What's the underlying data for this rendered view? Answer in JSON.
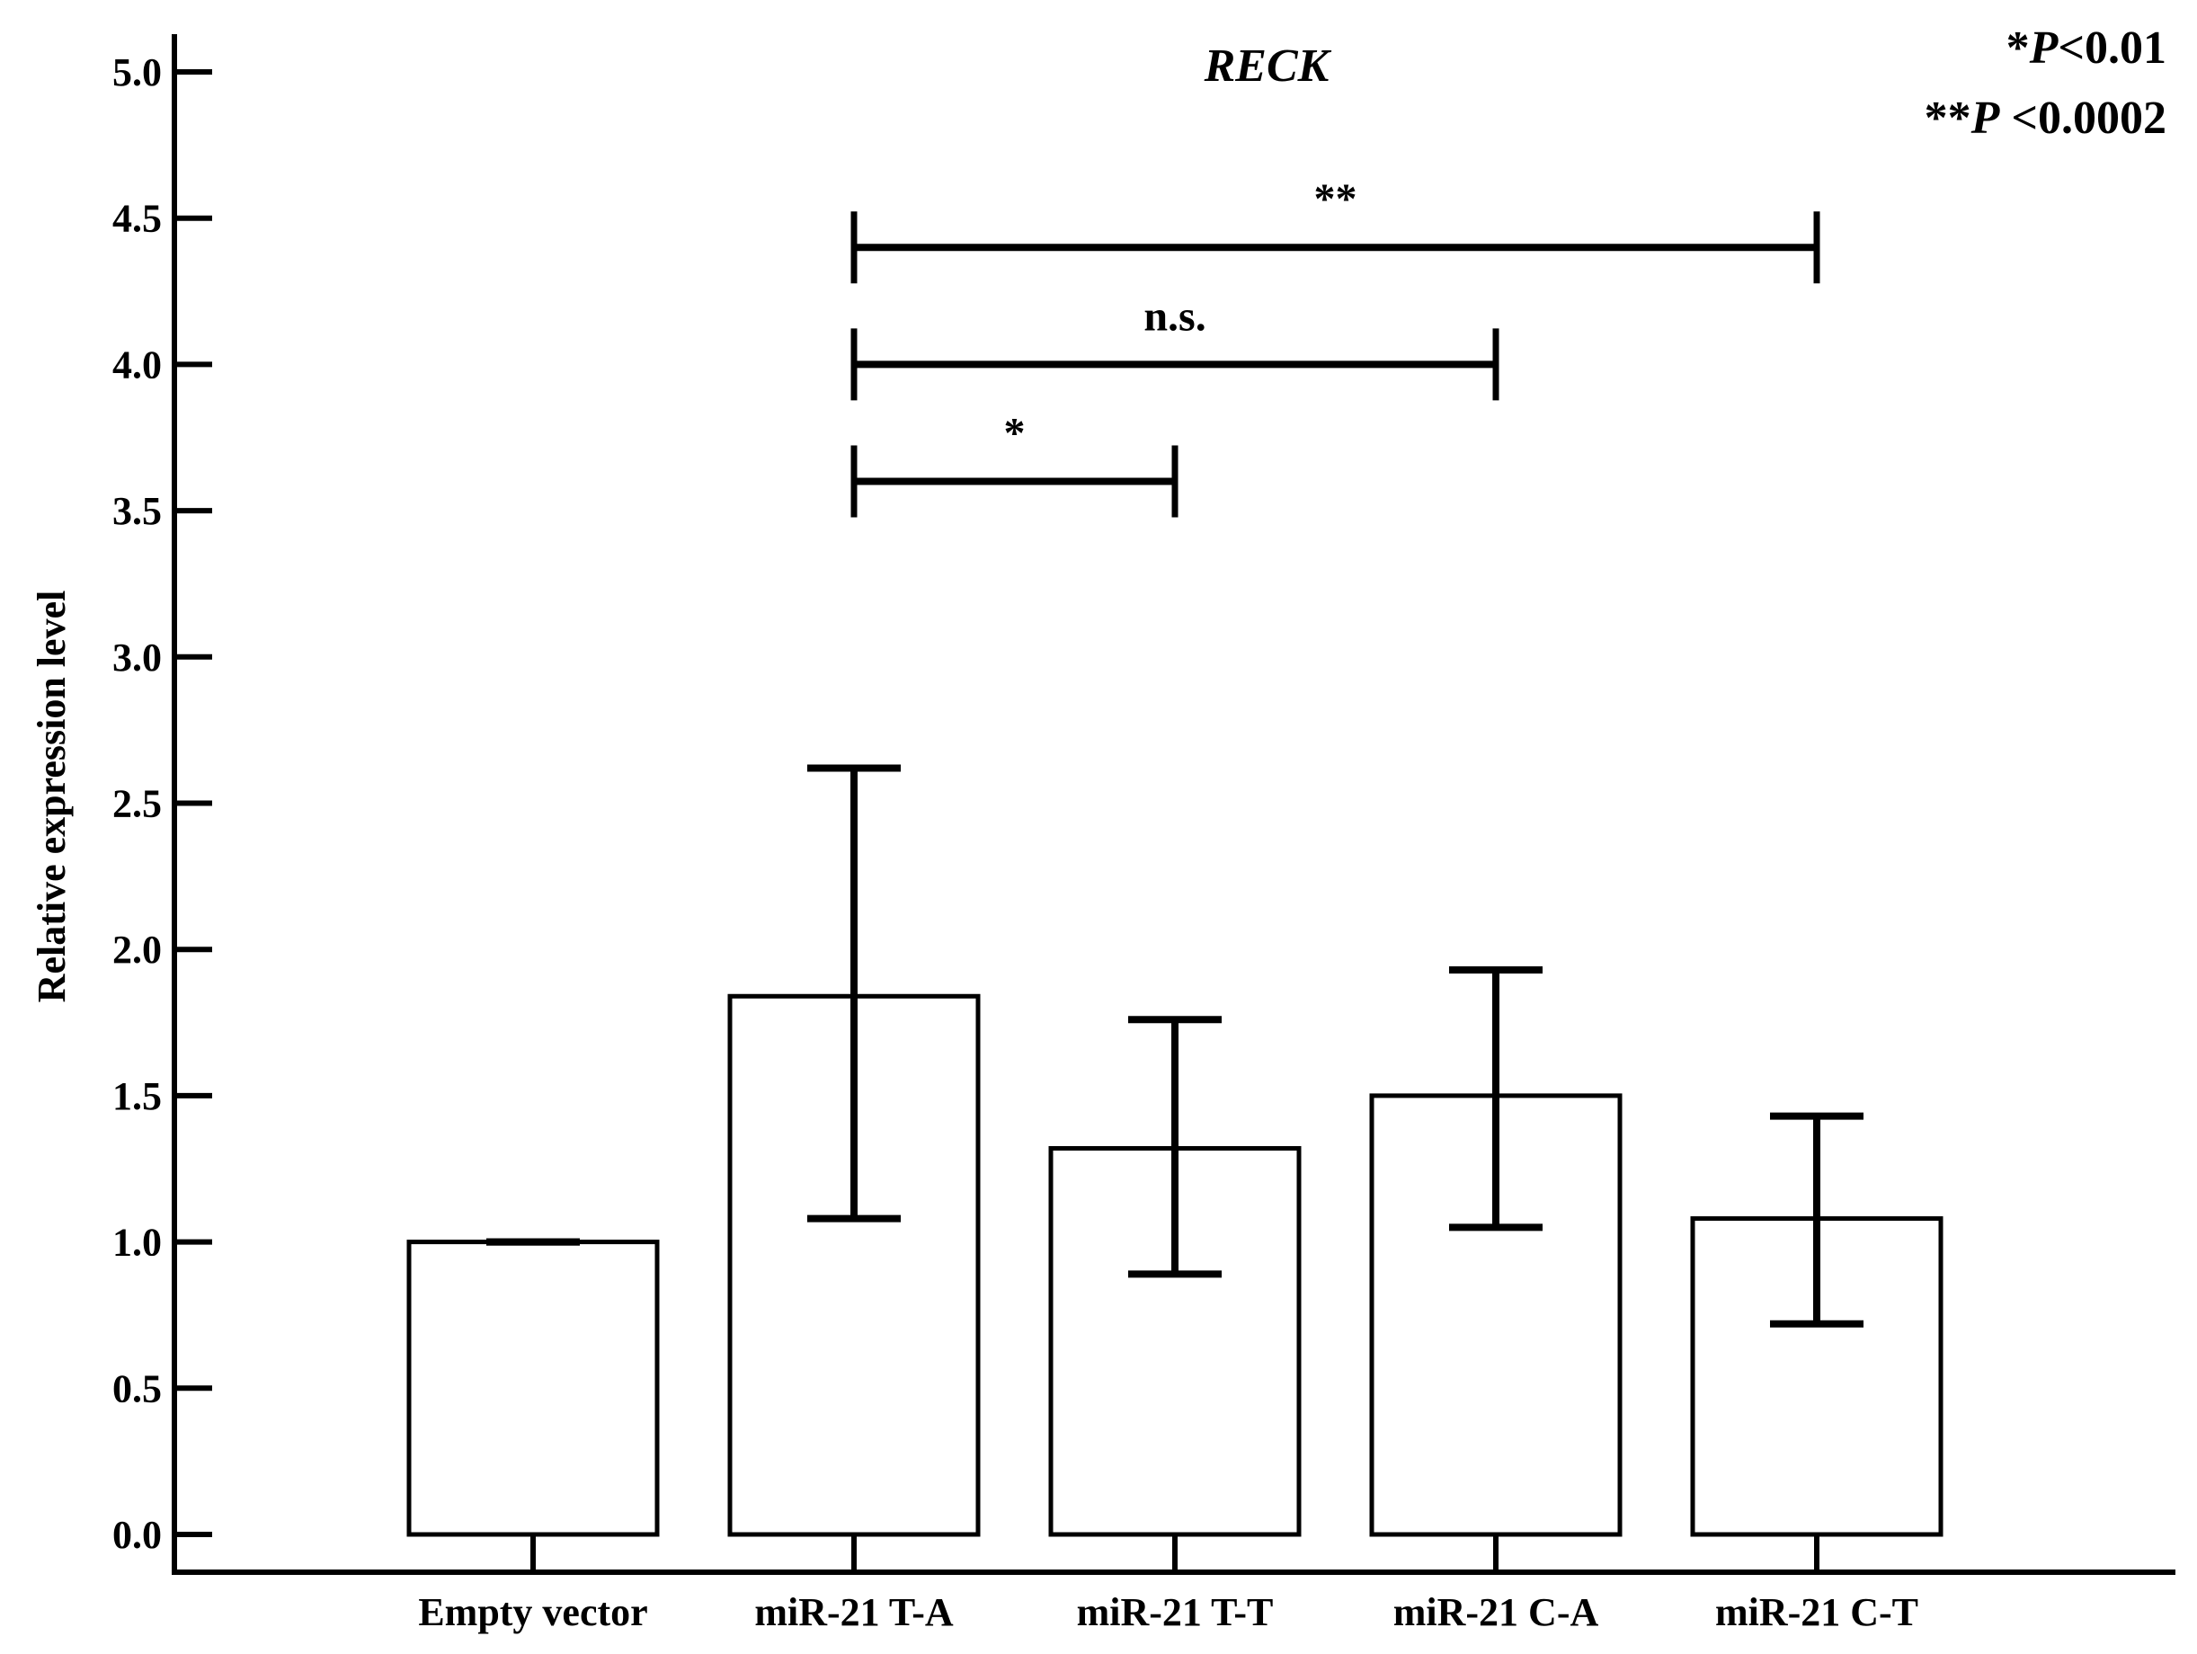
{
  "chart_data": {
    "type": "bar",
    "title": "RECK",
    "xlabel": "",
    "ylabel": "Relative expression level",
    "ylim": [
      0,
      5.0
    ],
    "yticks": [
      "0.0",
      "0.5",
      "1.0",
      "1.5",
      "2.0",
      "2.5",
      "3.0",
      "3.5",
      "4.0",
      "4.5",
      "5.0"
    ],
    "categories": [
      "Empty vector",
      "miR-21 T-A",
      "miR-21 T-T",
      "miR-21 C-A",
      "miR-21 C-T"
    ],
    "values": [
      1.0,
      1.84,
      1.32,
      1.5,
      1.08
    ],
    "error_low": [
      1.0,
      1.08,
      0.89,
      1.05,
      0.72
    ],
    "error_high": [
      1.0,
      2.62,
      1.76,
      1.93,
      1.43
    ],
    "bar_fill": "#ffffff",
    "bar_stroke": "#000000",
    "grid": false,
    "significance": [
      {
        "from": 1,
        "to": 2,
        "y": 3.6,
        "label": "*"
      },
      {
        "from": 1,
        "to": 3,
        "y": 4.0,
        "label": "n.s."
      },
      {
        "from": 1,
        "to": 4,
        "y": 4.4,
        "label": "**"
      }
    ],
    "p_notes": [
      {
        "prefix": "*",
        "p": "P",
        "rest": "<0.01"
      },
      {
        "prefix": "**",
        "p": "P",
        "rest": " <0.0002"
      }
    ]
  }
}
